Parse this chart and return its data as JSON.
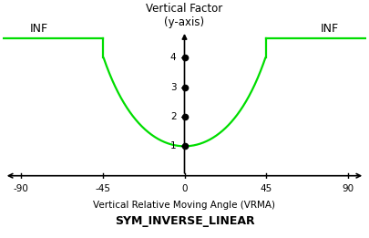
{
  "title_top": "Vertical Factor\n(y-axis)",
  "xlabel": "Vertical Relative Moving Angle (VRMA)",
  "chart_title": "SYM_INVERSE_LINEAR",
  "inf_label": "INF",
  "x_ticks": [
    -90,
    -45,
    0,
    45,
    90
  ],
  "y_ticks": [
    1,
    2,
    3,
    4
  ],
  "x_min": -100,
  "x_max": 100,
  "y_min": -0.1,
  "y_max": 5.0,
  "curve_color": "#00dd00",
  "bg_color": "#ffffff",
  "dot_color": "#000000",
  "inf_y": 4.65,
  "axis_color": "#000000",
  "curve_break_x": 45,
  "curve_min_y": 1.0,
  "curve_max_y": 4.0
}
